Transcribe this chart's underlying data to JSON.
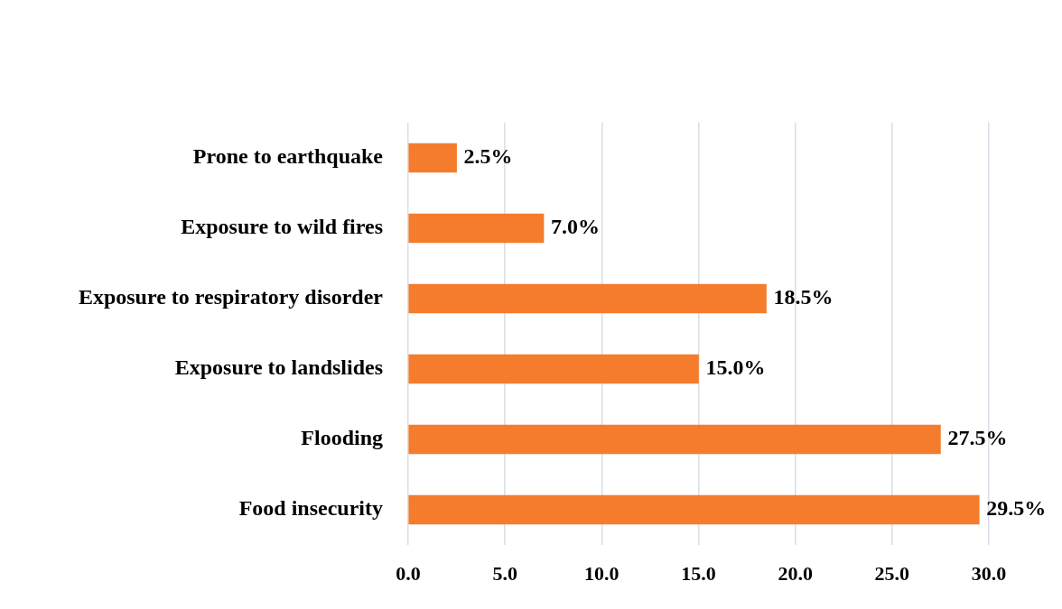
{
  "chart_data": {
    "type": "bar",
    "orientation": "horizontal",
    "categories": [
      "Prone to earthquake",
      "Exposure to wild fires",
      "Exposure to respiratory disorder",
      "Exposure to landslides",
      "Flooding",
      "Food insecurity"
    ],
    "values": [
      2.5,
      7.0,
      18.5,
      15.0,
      27.5,
      29.5
    ],
    "value_labels": [
      "2.5%",
      "7.0%",
      "18.5%",
      "15.0%",
      "27.5%",
      "29.5%"
    ],
    "color": "#f47c2c",
    "xlim": [
      0,
      30
    ],
    "xticks": [
      {
        "value": 0,
        "label": "0.0"
      },
      {
        "value": 5,
        "label": "5.0"
      },
      {
        "value": 10,
        "label": "10.0"
      },
      {
        "value": 15,
        "label": "15.0"
      },
      {
        "value": 20,
        "label": "20.0"
      },
      {
        "value": 25,
        "label": "25.0"
      },
      {
        "value": 30,
        "label": "30.0"
      }
    ],
    "grid": "x"
  }
}
